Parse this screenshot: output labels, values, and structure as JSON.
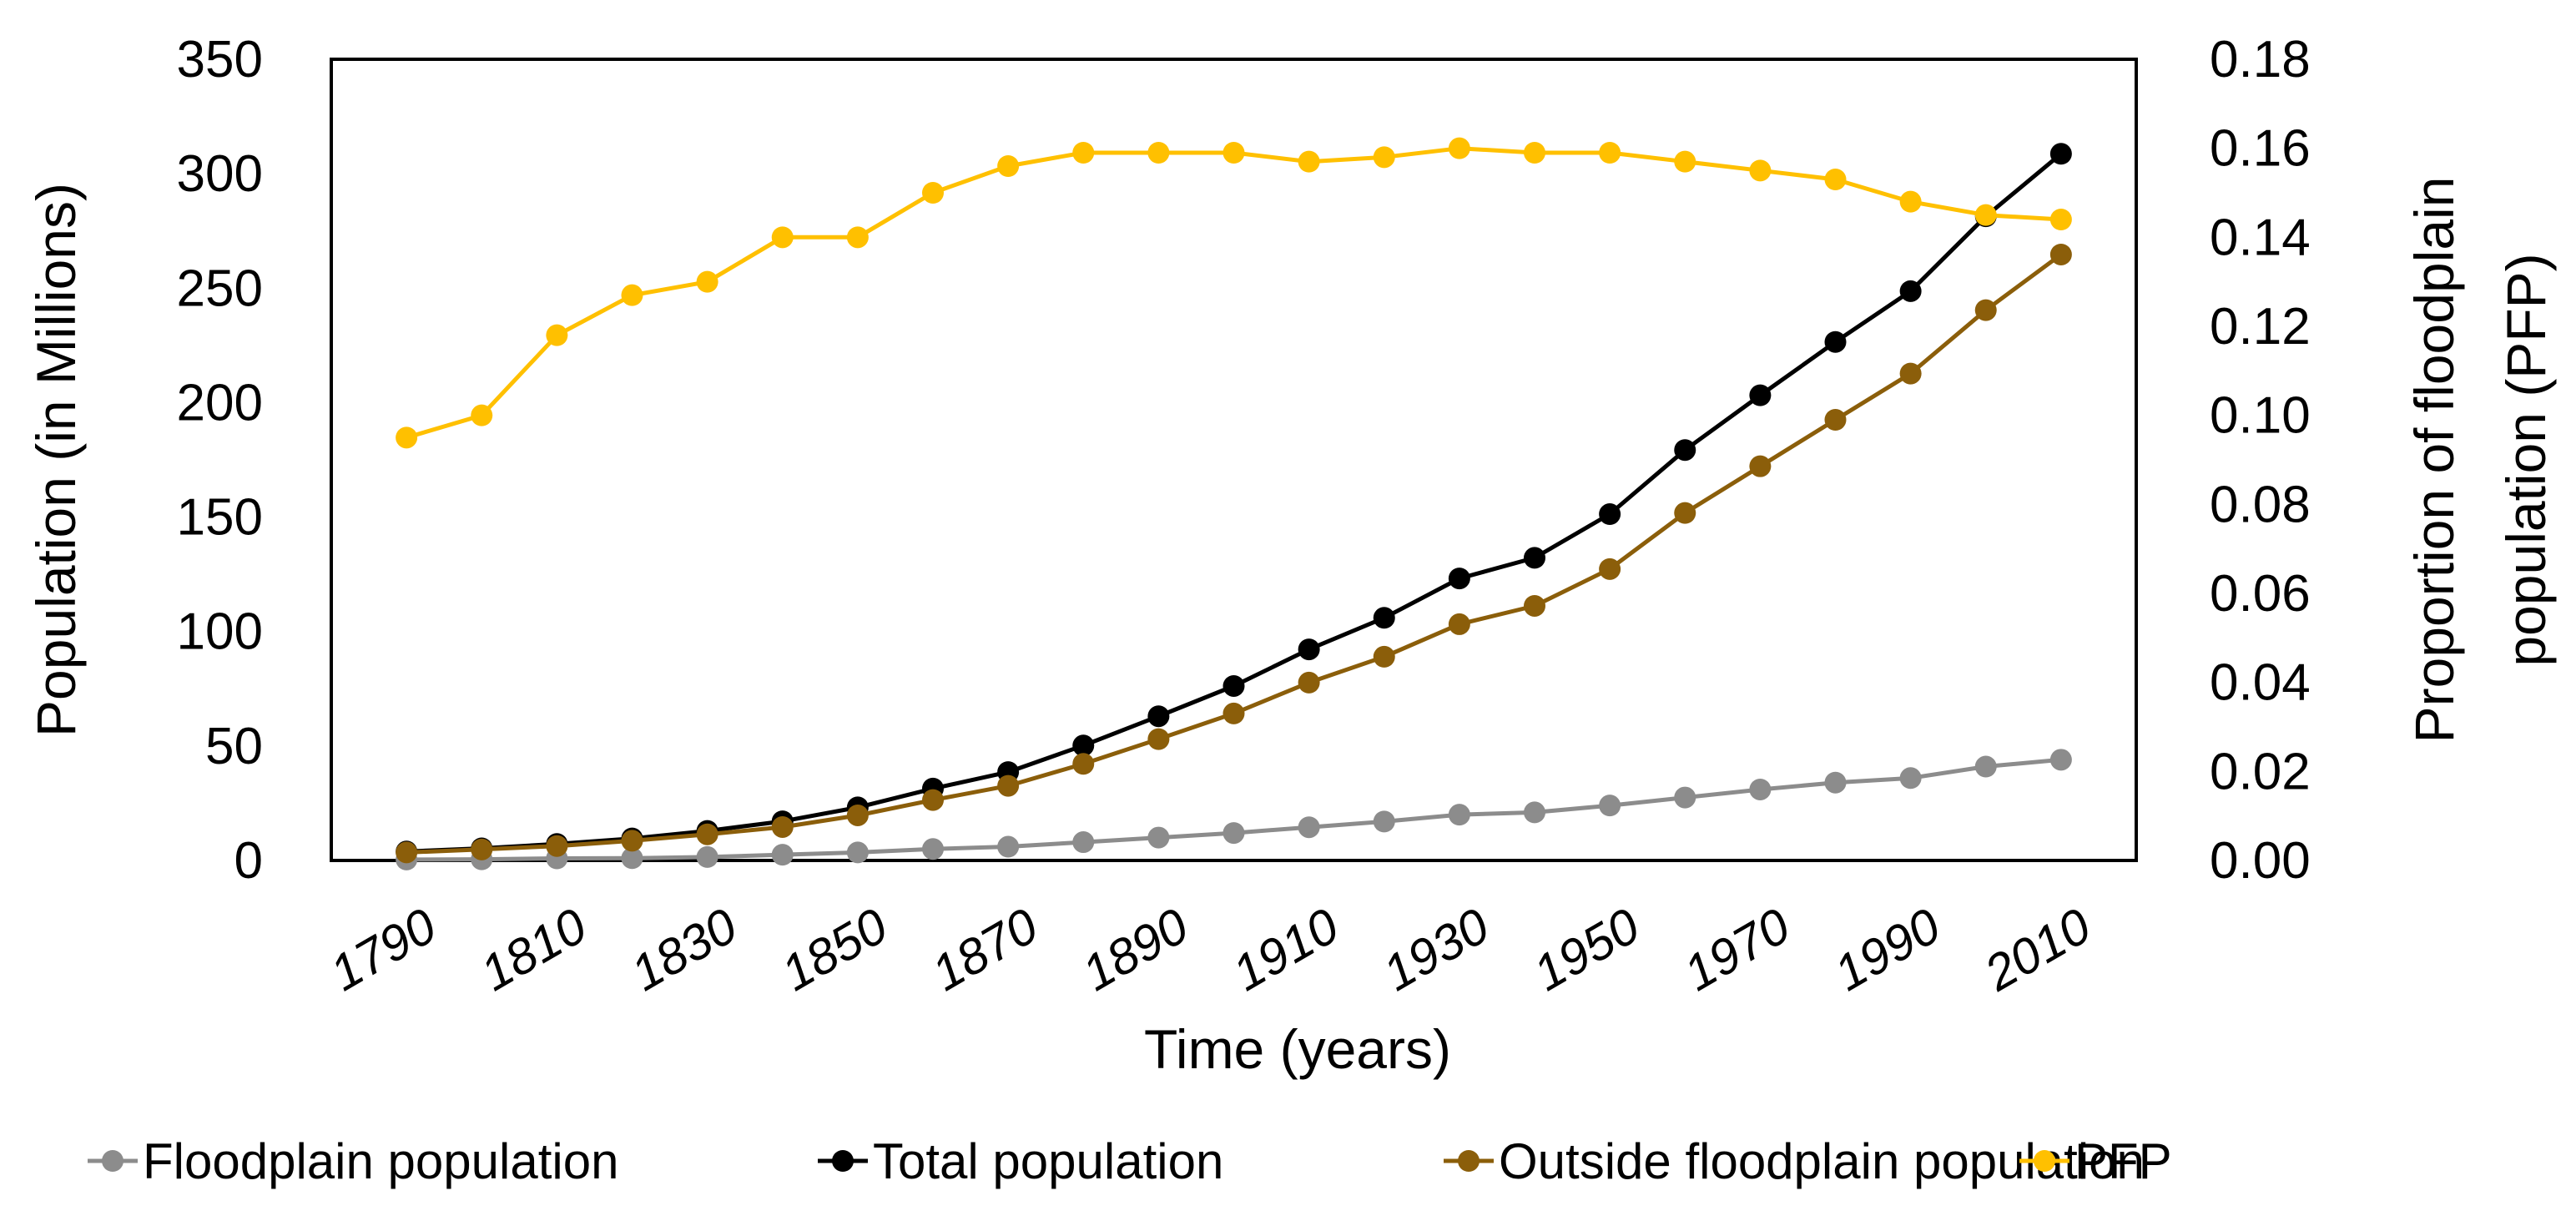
{
  "chart_data": {
    "type": "line",
    "title": "",
    "xlabel": "Time (years)",
    "ylabel": "Population (in Millions)",
    "y2label_lines": [
      "Proportion of floodplain",
      "population (PFP)"
    ],
    "ylim": [
      0,
      350
    ],
    "y2lim": [
      0,
      0.18
    ],
    "yticks": [
      "0",
      "50",
      "100",
      "150",
      "200",
      "250",
      "300",
      "350"
    ],
    "y2ticks": [
      "0.00",
      "0.02",
      "0.04",
      "0.06",
      "0.08",
      "0.10",
      "0.12",
      "0.14",
      "0.16",
      "0.18"
    ],
    "xtick_labels": [
      "1790",
      "1810",
      "1830",
      "1850",
      "1870",
      "1890",
      "1910",
      "1930",
      "1950",
      "1970",
      "1990",
      "2010"
    ],
    "x": [
      1790,
      1800,
      1810,
      1820,
      1830,
      1840,
      1850,
      1860,
      1870,
      1880,
      1890,
      1900,
      1910,
      1920,
      1930,
      1940,
      1950,
      1960,
      1970,
      1980,
      1990,
      2000,
      2010
    ],
    "legend_position": "bottom",
    "series": [
      {
        "name": "Floodplain population",
        "axis": "left",
        "color": "#8C8C8C",
        "values": [
          0.4,
          0.5,
          0.9,
          1.0,
          1.5,
          2.5,
          3.5,
          5.0,
          6.0,
          8.0,
          10.0,
          12.0,
          14.5,
          17.0,
          20.0,
          21.0,
          24.0,
          27.5,
          31.0,
          34.0,
          36.0,
          41.0,
          44.0
        ]
      },
      {
        "name": "Total population",
        "axis": "left",
        "color": "#000000",
        "values": [
          3.9,
          5.3,
          7.2,
          9.6,
          12.9,
          17.1,
          23.2,
          31.4,
          38.6,
          50.2,
          63.0,
          76.2,
          92.2,
          106.0,
          123.2,
          132.2,
          151.3,
          179.3,
          203.2,
          226.5,
          248.7,
          281.4,
          308.7
        ]
      },
      {
        "name": "Outside floodplain population",
        "axis": "left",
        "color": "#8B5E0A",
        "values": [
          3.5,
          4.8,
          6.3,
          8.6,
          11.4,
          14.6,
          19.7,
          26.4,
          32.6,
          42.2,
          53.0,
          64.2,
          77.7,
          89.0,
          103.2,
          111.2,
          127.3,
          151.8,
          172.2,
          192.5,
          212.7,
          240.4,
          264.7
        ]
      },
      {
        "name": "PFP",
        "axis": "right",
        "color": "#FFC000",
        "values": [
          0.095,
          0.1,
          0.118,
          0.127,
          0.13,
          0.14,
          0.14,
          0.15,
          0.156,
          0.159,
          0.159,
          0.159,
          0.157,
          0.158,
          0.16,
          0.159,
          0.159,
          0.157,
          0.155,
          0.153,
          0.148,
          0.145,
          0.144
        ]
      }
    ]
  }
}
